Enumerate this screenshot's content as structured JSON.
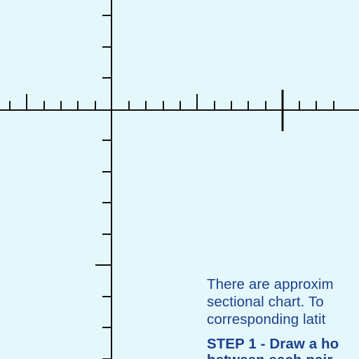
{
  "diagram": {
    "background_color": "#e4f8fc",
    "ink_color": "#111111",
    "text_color": "#1b3f8c",
    "horizontal_ticks": {
      "count": 20,
      "major_every": 5
    },
    "vertical_ticks": {
      "count": 12,
      "major_every": 5
    },
    "marker_tick": "course-line-marker"
  },
  "instructions": {
    "line1": "There are approxim",
    "line2": "sectional chart. To",
    "line3": "corresponding latit",
    "step1": "STEP 1 - Draw a ho",
    "line5": "between each pair"
  }
}
